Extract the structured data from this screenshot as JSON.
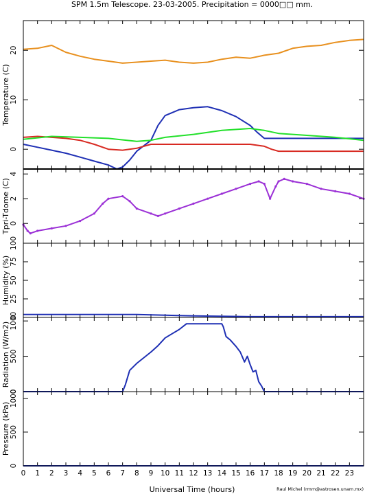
{
  "figure": {
    "title": "SPM 1.5m Telescope. 23-03-2005. Precipitation = 0000□□ mm.",
    "xlabel": "Universal Time (hours)",
    "credit": "Raul Michel (rmm@astrosen.unam.mx)"
  },
  "chart_data": [
    {
      "type": "line",
      "panel": "temperature",
      "ylabel": "Temperature (C)",
      "xlim": [
        0,
        24
      ],
      "ylim": [
        -4,
        26
      ],
      "yticks": [
        0,
        10,
        20
      ],
      "xticks": [
        0,
        1,
        2,
        3,
        4,
        5,
        6,
        7,
        8,
        9,
        10,
        11,
        12,
        13,
        14,
        15,
        16,
        17,
        18,
        19,
        20,
        21,
        22,
        23
      ],
      "series": [
        {
          "color": "#e8901e",
          "points": [
            [
              0,
              20.2
            ],
            [
              1,
              20.4
            ],
            [
              2,
              21.0
            ],
            [
              3,
              19.6
            ],
            [
              4,
              18.8
            ],
            [
              5,
              18.2
            ],
            [
              6,
              17.8
            ],
            [
              7,
              17.4
            ],
            [
              8,
              17.6
            ],
            [
              9,
              17.8
            ],
            [
              10,
              18.0
            ],
            [
              11,
              17.6
            ],
            [
              12,
              17.4
            ],
            [
              13,
              17.6
            ],
            [
              14,
              18.2
            ],
            [
              15,
              18.6
            ],
            [
              16,
              18.4
            ],
            [
              17,
              19.0
            ],
            [
              18,
              19.4
            ],
            [
              19,
              20.4
            ],
            [
              20,
              20.8
            ],
            [
              21,
              21.0
            ],
            [
              22,
              21.6
            ],
            [
              23,
              22.0
            ],
            [
              24,
              22.2
            ]
          ]
        },
        {
          "color": "#1e2fb4",
          "points": [
            [
              0,
              1.0
            ],
            [
              1,
              0.4
            ],
            [
              2,
              -0.2
            ],
            [
              3,
              -0.8
            ],
            [
              4,
              -1.6
            ],
            [
              5,
              -2.4
            ],
            [
              6,
              -3.2
            ],
            [
              6.6,
              -4.0
            ],
            [
              7,
              -3.6
            ],
            [
              7.5,
              -2.2
            ],
            [
              8,
              -0.4
            ],
            [
              9,
              1.8
            ],
            [
              9.5,
              4.8
            ],
            [
              10,
              6.8
            ],
            [
              11,
              8.0
            ],
            [
              12,
              8.4
            ],
            [
              13,
              8.6
            ],
            [
              14,
              7.8
            ],
            [
              15,
              6.6
            ],
            [
              16,
              4.8
            ],
            [
              16.5,
              3.4
            ],
            [
              17,
              2.2
            ],
            [
              18,
              2.2
            ],
            [
              20,
              2.2
            ],
            [
              22,
              2.2
            ],
            [
              24,
              2.2
            ]
          ]
        },
        {
          "color": "#d82a22",
          "points": [
            [
              0,
              2.4
            ],
            [
              1,
              2.6
            ],
            [
              2,
              2.4
            ],
            [
              3,
              2.2
            ],
            [
              4,
              1.8
            ],
            [
              5,
              1.0
            ],
            [
              6,
              0.0
            ],
            [
              7,
              -0.2
            ],
            [
              8,
              0.2
            ],
            [
              9,
              1.0
            ],
            [
              10,
              1.0
            ],
            [
              12,
              1.0
            ],
            [
              14,
              1.0
            ],
            [
              16,
              1.0
            ],
            [
              17,
              0.6
            ],
            [
              17.5,
              0.0
            ],
            [
              18,
              -0.4
            ],
            [
              19,
              -0.4
            ],
            [
              21,
              -0.4
            ],
            [
              24,
              -0.4
            ]
          ]
        },
        {
          "color": "#22e02a",
          "points": [
            [
              0,
              2.0
            ],
            [
              2,
              2.6
            ],
            [
              4,
              2.4
            ],
            [
              6,
              2.2
            ],
            [
              8,
              1.6
            ],
            [
              9,
              1.8
            ],
            [
              10,
              2.4
            ],
            [
              12,
              3.0
            ],
            [
              14,
              3.8
            ],
            [
              16,
              4.2
            ],
            [
              17,
              3.8
            ],
            [
              18,
              3.2
            ],
            [
              20,
              2.8
            ],
            [
              22,
              2.4
            ],
            [
              24,
              1.8
            ]
          ]
        },
        {
          "color": "#000000",
          "points": [
            [
              0,
              -4.0
            ],
            [
              24,
              -4.0
            ]
          ]
        }
      ]
    },
    {
      "type": "scatter",
      "panel": "tpri-tdome",
      "ylabel": "Tpri-Tdome (C)",
      "xlim": [
        0,
        24
      ],
      "ylim": [
        -1.6,
        4.4
      ],
      "yticks": [
        0,
        2,
        4
      ],
      "series": [
        {
          "color": "#9b30d6",
          "points": [
            [
              0,
              -0.1
            ],
            [
              0.3,
              -0.6
            ],
            [
              0.5,
              -0.8
            ],
            [
              1,
              -0.6
            ],
            [
              2,
              -0.4
            ],
            [
              3,
              -0.2
            ],
            [
              4,
              0.2
            ],
            [
              5,
              0.8
            ],
            [
              5.6,
              1.6
            ],
            [
              6,
              2.0
            ],
            [
              7,
              2.2
            ],
            [
              7.5,
              1.8
            ],
            [
              8,
              1.2
            ],
            [
              9,
              0.8
            ],
            [
              9.5,
              0.6
            ],
            [
              10,
              0.8
            ],
            [
              11,
              1.2
            ],
            [
              12,
              1.6
            ],
            [
              13,
              2.0
            ],
            [
              14,
              2.4
            ],
            [
              15,
              2.8
            ],
            [
              16,
              3.2
            ],
            [
              16.6,
              3.4
            ],
            [
              17,
              3.2
            ],
            [
              17.4,
              2.0
            ],
            [
              17.8,
              3.0
            ],
            [
              18,
              3.4
            ],
            [
              18.4,
              3.6
            ],
            [
              19,
              3.4
            ],
            [
              20,
              3.2
            ],
            [
              21,
              2.8
            ],
            [
              22,
              2.6
            ],
            [
              23,
              2.4
            ],
            [
              24,
              2.0
            ]
          ]
        }
      ]
    },
    {
      "type": "line",
      "panel": "humidity",
      "ylabel": "Humidity (%)",
      "xlim": [
        0,
        24
      ],
      "ylim": [
        0,
        100
      ],
      "yticks": [
        0,
        25,
        50,
        75,
        100
      ],
      "series": [
        {
          "color": "#1e2fb4",
          "points": [
            [
              0,
              4
            ],
            [
              4,
              4
            ],
            [
              8,
              4
            ],
            [
              10,
              3
            ],
            [
              12,
              2
            ],
            [
              16,
              1
            ],
            [
              20,
              1
            ],
            [
              24,
              1
            ]
          ]
        }
      ]
    },
    {
      "type": "line",
      "panel": "radiation",
      "ylabel": "Radiation (W/m2)",
      "xlim": [
        0,
        24
      ],
      "ylim": [
        0,
        1050
      ],
      "yticks": [
        0,
        500,
        1000
      ],
      "series": [
        {
          "color": "#1e2fb4",
          "points": [
            [
              0,
              0
            ],
            [
              6,
              0
            ],
            [
              7,
              0
            ],
            [
              7.2,
              100
            ],
            [
              7.5,
              300
            ],
            [
              8,
              400
            ],
            [
              9,
              560
            ],
            [
              9.5,
              650
            ],
            [
              10,
              760
            ],
            [
              11,
              880
            ],
            [
              11.5,
              960
            ],
            [
              12,
              960
            ],
            [
              13,
              960
            ],
            [
              14,
              960
            ],
            [
              14.1,
              920
            ],
            [
              14.3,
              780
            ],
            [
              14.6,
              730
            ],
            [
              15,
              640
            ],
            [
              15.3,
              560
            ],
            [
              15.6,
              420
            ],
            [
              15.8,
              500
            ],
            [
              16,
              380
            ],
            [
              16.2,
              280
            ],
            [
              16.4,
              300
            ],
            [
              16.6,
              140
            ],
            [
              16.8,
              80
            ],
            [
              17,
              0
            ],
            [
              24,
              0
            ]
          ]
        }
      ]
    },
    {
      "type": "line",
      "panel": "pressure",
      "ylabel": "Pressure (kPa)",
      "xlim": [
        0,
        24
      ],
      "ylim": [
        0,
        1100
      ],
      "yticks": [
        0,
        500,
        1000
      ],
      "series": [
        {
          "color": "#1e2fb4",
          "points": [
            [
              0,
              0
            ],
            [
              24,
              0
            ]
          ]
        }
      ]
    }
  ]
}
